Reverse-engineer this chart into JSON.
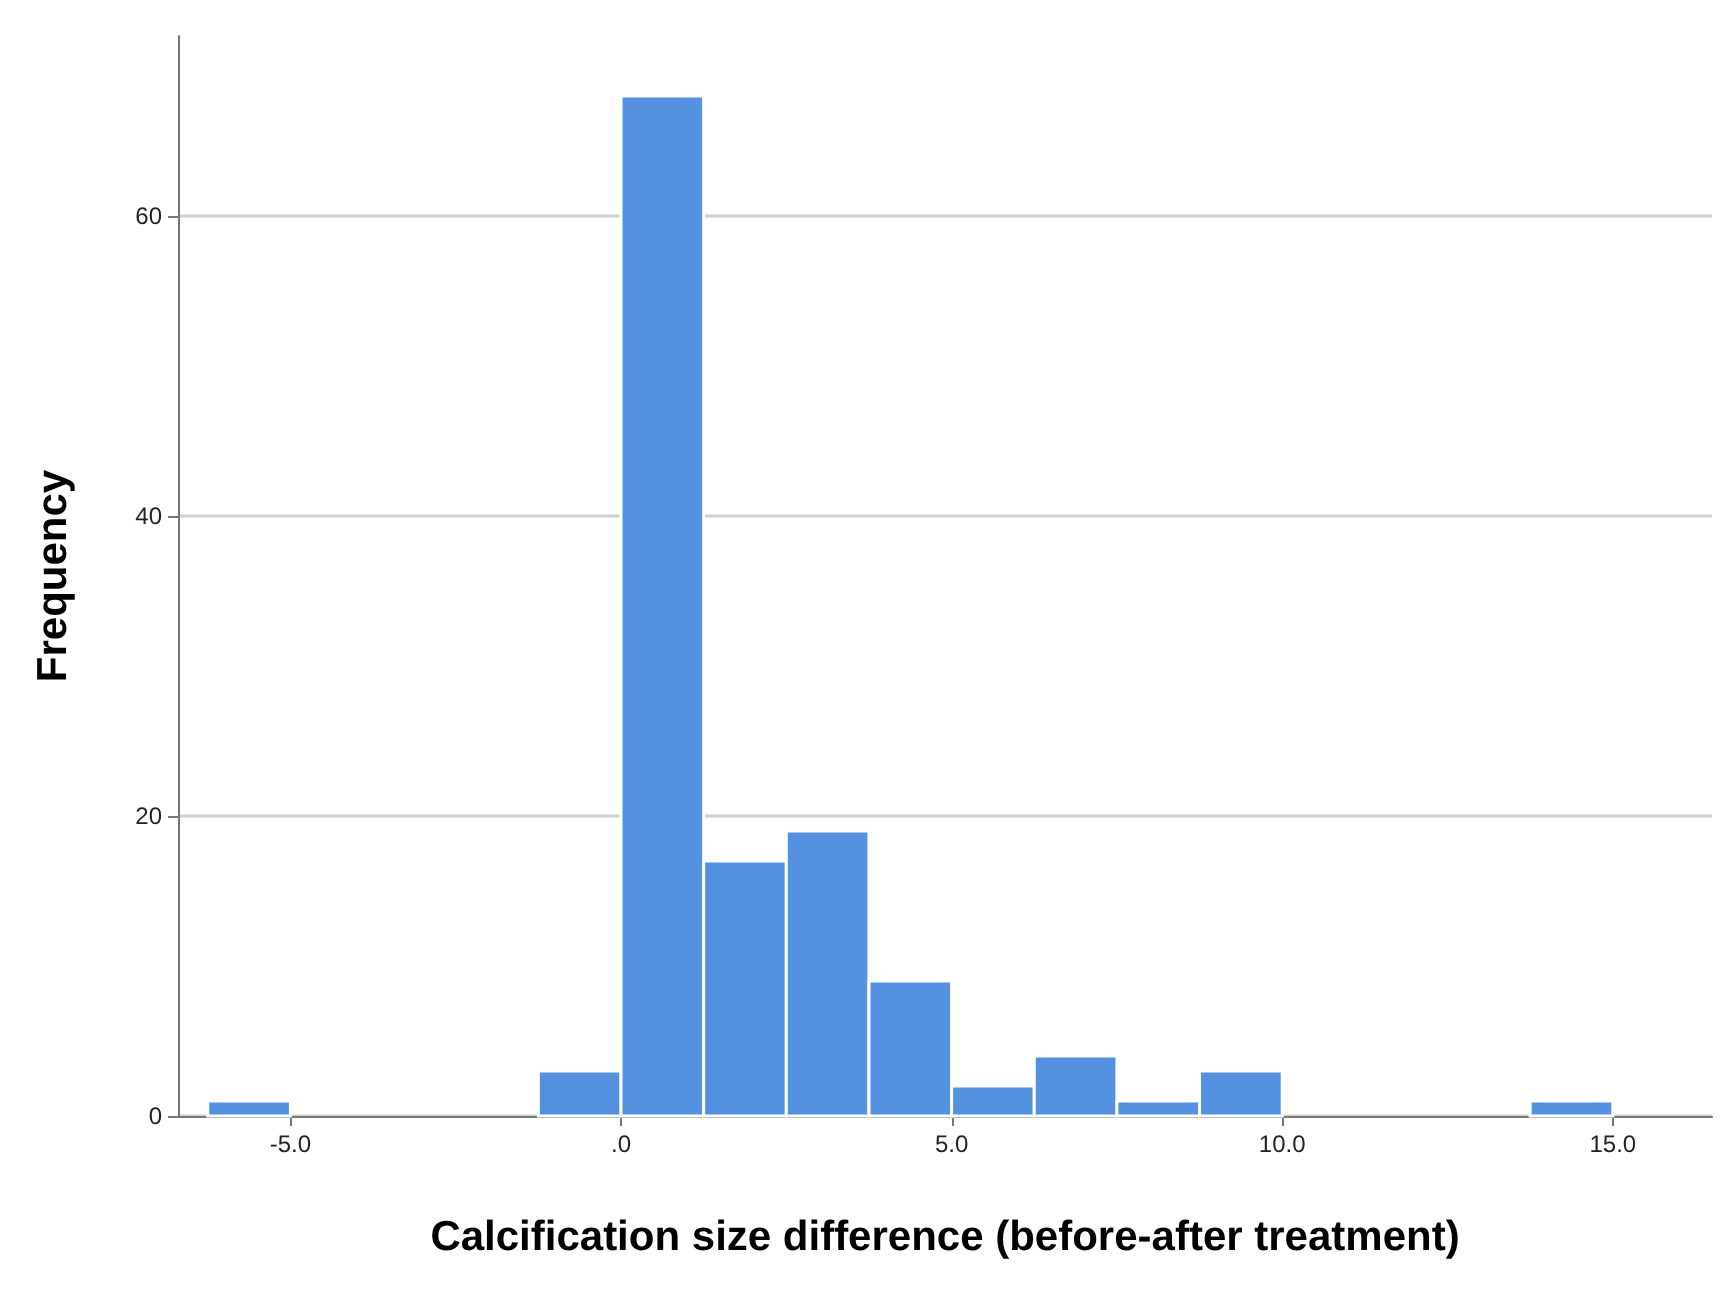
{
  "chart_data": {
    "type": "histogram",
    "xlabel": "Calcification size difference (before-after treatment)",
    "ylabel": "Frequency",
    "bins": [
      -6.25,
      -5,
      -3.75,
      -2.5,
      -1.25,
      0,
      1.25,
      2.5,
      3.75,
      5,
      6.25,
      7.5,
      8.75,
      10,
      11.25,
      12.5,
      13.75,
      15
    ],
    "values": [
      1,
      0,
      0,
      0,
      3,
      68,
      17,
      19,
      9,
      2,
      4,
      1,
      3,
      0,
      0,
      0,
      1
    ],
    "color": "#5491e0",
    "xlim": [
      -6.7,
      16.5
    ],
    "ylim": [
      0,
      72
    ],
    "xticks": [
      {
        "value": -5,
        "label": "-5.0"
      },
      {
        "value": 0,
        "label": ".0"
      },
      {
        "value": 5,
        "label": "5.0"
      },
      {
        "value": 10,
        "label": "10.0"
      },
      {
        "value": 15,
        "label": "15.0"
      }
    ],
    "yticks": [
      0,
      20,
      40,
      60
    ],
    "grid": "y"
  }
}
